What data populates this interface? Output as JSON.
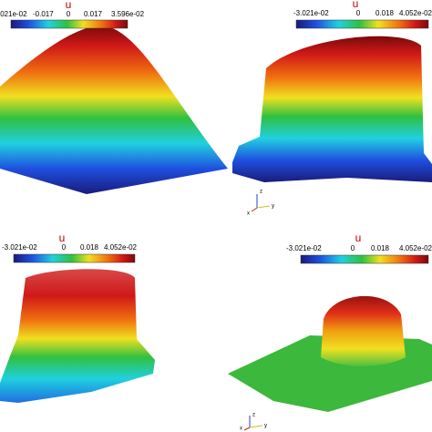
{
  "panels": [
    {
      "colorbar_title": "u",
      "tick_labels": [
        ".021e-02",
        "-0.017",
        "0",
        "0.017",
        "3.596e-02"
      ]
    },
    {
      "colorbar_title": "u",
      "tick_labels": [
        "-3.021e-02",
        "0",
        "0.018",
        "4.052e-02"
      ]
    },
    {
      "colorbar_title": "u",
      "tick_labels": [
        "-3.021e-02",
        "0",
        "0.018",
        "4.052e-02"
      ]
    },
    {
      "colorbar_title": "u",
      "tick_labels": [
        "-3.021e-02",
        "0",
        "0.018",
        "4.052e-02"
      ]
    }
  ],
  "axes_triads": [
    {
      "labels": [
        "z",
        "y",
        "x"
      ]
    },
    {
      "labels": [
        "z",
        "y",
        "x"
      ]
    }
  ]
}
